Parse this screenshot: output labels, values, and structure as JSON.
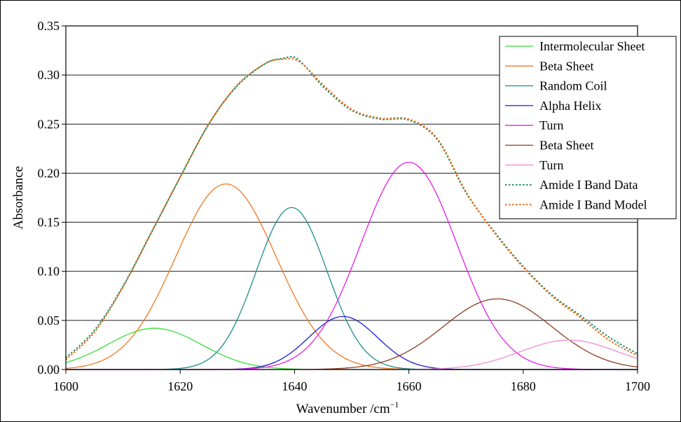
{
  "chart_data": {
    "type": "line",
    "title": "",
    "xlabel": "Wavenumber /cm",
    "xlabel_superscript": "−1",
    "ylabel": "Absorbance",
    "xlim": [
      1600,
      1700
    ],
    "ylim": [
      0,
      0.35
    ],
    "x_ticks": [
      "1600",
      "1620",
      "1640",
      "1660",
      "1680",
      "1700"
    ],
    "y_ticks": [
      "0.00",
      "0.05",
      "0.10",
      "0.15",
      "0.20",
      "0.25",
      "0.30",
      "0.35"
    ],
    "grid": "horizontal",
    "legend_position": "top-right",
    "series": [
      {
        "name": "Intermolecular Sheet",
        "color": "#33e133",
        "style": "solid",
        "kind": "gaussian",
        "center": 1615.5,
        "amplitude": 0.042,
        "sigma": 8.2
      },
      {
        "name": "Beta Sheet",
        "color": "#f07820",
        "style": "solid",
        "kind": "gaussian",
        "center": 1628,
        "amplitude": 0.189,
        "sigma": 8.8
      },
      {
        "name": "Random Coil",
        "color": "#1e8c8c",
        "style": "solid",
        "kind": "gaussian",
        "center": 1639.5,
        "amplitude": 0.165,
        "sigma": 6.2
      },
      {
        "name": "Alpha Helix",
        "color": "#1a1ad2",
        "style": "solid",
        "kind": "gaussian",
        "center": 1648.5,
        "amplitude": 0.054,
        "sigma": 6.0
      },
      {
        "name": "Turn",
        "color": "#e61ee6",
        "style": "solid",
        "kind": "gaussian",
        "center": 1660,
        "amplitude": 0.211,
        "sigma": 8.4
      },
      {
        "name": "Beta Sheet",
        "color": "#8c3c1e",
        "style": "solid",
        "kind": "gaussian",
        "center": 1675.5,
        "amplitude": 0.072,
        "sigma": 9.5
      },
      {
        "name": "Turn",
        "color": "#f08cd8",
        "style": "solid",
        "kind": "gaussian",
        "center": 1688,
        "amplitude": 0.03,
        "sigma": 8.5
      },
      {
        "name": "Amide I Band Data",
        "color": "#1e8c6e",
        "style": "dotted",
        "kind": "points",
        "x": [
          1600,
          1605,
          1610,
          1615,
          1620,
          1625,
          1630,
          1635,
          1638,
          1640,
          1642,
          1645,
          1650,
          1655,
          1660,
          1665,
          1670,
          1675,
          1680,
          1685,
          1690,
          1695,
          1700
        ],
        "y": [
          0.012,
          0.04,
          0.085,
          0.14,
          0.196,
          0.25,
          0.289,
          0.312,
          0.317,
          0.318,
          0.308,
          0.288,
          0.264,
          0.255,
          0.254,
          0.234,
          0.18,
          0.14,
          0.105,
          0.076,
          0.055,
          0.033,
          0.016
        ]
      },
      {
        "name": "Amide I Band Model",
        "color": "#ee6a10",
        "style": "dotted",
        "kind": "points",
        "x": [
          1600,
          1605,
          1610,
          1615,
          1620,
          1625,
          1630,
          1635,
          1638,
          1640,
          1642,
          1645,
          1650,
          1655,
          1660,
          1665,
          1670,
          1675,
          1680,
          1685,
          1690,
          1695,
          1700
        ],
        "y": [
          0.01,
          0.038,
          0.084,
          0.14,
          0.196,
          0.25,
          0.29,
          0.312,
          0.316,
          0.316,
          0.308,
          0.29,
          0.265,
          0.256,
          0.255,
          0.235,
          0.181,
          0.139,
          0.104,
          0.075,
          0.053,
          0.03,
          0.014
        ]
      }
    ]
  }
}
